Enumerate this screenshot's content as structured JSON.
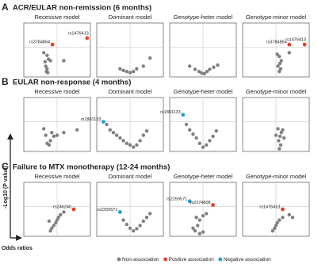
{
  "sections": [
    {
      "letter": "A",
      "title": "ACR/EULAR non-remission (6 months)"
    },
    {
      "letter": "B",
      "title": "EULAR non-response (4 months)"
    },
    {
      "letter": "C",
      "title": "Failure to MTX monotherapy (12-24 months)"
    }
  ],
  "axes": {
    "y_label": "-Log10 (P value)",
    "x_label": "Odds ratios"
  },
  "legend": [
    {
      "name": "Non-association",
      "color": "#808080"
    },
    {
      "name": "Positive association",
      "color": "#e8402a"
    },
    {
      "name": "Negative association",
      "color": "#1ea0dc"
    }
  ],
  "chart_data": [
    {
      "type": "scatter",
      "title": "Recessive model",
      "xlim": [
        0,
        1
      ],
      "ylim": [
        0,
        1
      ],
      "color": "#808080",
      "x": [
        0.33,
        0.35,
        0.34,
        0.36,
        0.32,
        0.37,
        0.35,
        0.3,
        0.4,
        0.6
      ],
      "y": [
        0.2,
        0.15,
        0.1,
        0.08,
        0.28,
        0.33,
        0.4,
        0.45,
        0.3,
        0.3
      ],
      "highlights": [
        {
          "label": "rs3784864",
          "x": 0.43,
          "y": 0.6,
          "color": "#e8402a"
        },
        {
          "label": "rs1476413",
          "x": 0.95,
          "y": 0.72,
          "color": "#e8402a"
        }
      ]
    },
    {
      "type": "scatter",
      "title": "Dominant model",
      "xlim": [
        0,
        1
      ],
      "ylim": [
        0,
        1
      ],
      "color": "#808080",
      "x": [
        0.35,
        0.4,
        0.45,
        0.5,
        0.55,
        0.6,
        0.7,
        0.8
      ],
      "y": [
        0.15,
        0.12,
        0.1,
        0.08,
        0.1,
        0.15,
        0.2,
        0.35
      ],
      "highlights": []
    },
    {
      "type": "scatter",
      "title": "Genotype-heter model",
      "xlim": [
        0,
        1
      ],
      "ylim": [
        0,
        1
      ],
      "color": "#808080",
      "x": [
        0.3,
        0.38,
        0.44,
        0.48,
        0.52,
        0.56,
        0.6,
        0.66,
        0.72
      ],
      "y": [
        0.2,
        0.14,
        0.1,
        0.07,
        0.06,
        0.1,
        0.14,
        0.18,
        0.22
      ],
      "highlights": []
    },
    {
      "type": "scatter",
      "title": "Genotype-minor model",
      "xlim": [
        0,
        1
      ],
      "ylim": [
        0,
        1
      ],
      "color": "#808080",
      "x": [
        0.55,
        0.57,
        0.53,
        0.56,
        0.58,
        0.55,
        0.52,
        0.7
      ],
      "y": [
        0.1,
        0.15,
        0.2,
        0.25,
        0.3,
        0.38,
        0.42,
        0.45
      ],
      "highlights": [
        {
          "label": "rs3784864",
          "x": 0.7,
          "y": 0.6,
          "color": "#e8402a"
        },
        {
          "label": "rs1476413",
          "x": 0.93,
          "y": 0.6,
          "color": "#e8402a"
        }
      ]
    },
    {
      "type": "scatter",
      "title": "Recessive model",
      "xlim": [
        0,
        1
      ],
      "ylim": [
        0,
        1
      ],
      "color": "#808080",
      "x": [
        0.35,
        0.38,
        0.4,
        0.33,
        0.42,
        0.45,
        0.5,
        0.6,
        0.8,
        0.3
      ],
      "y": [
        0.15,
        0.12,
        0.2,
        0.3,
        0.35,
        0.28,
        0.3,
        0.35,
        0.4,
        0.42
      ],
      "highlights": []
    },
    {
      "type": "scatter",
      "title": "Dominant model",
      "xlim": [
        0,
        1
      ],
      "ylim": [
        0,
        1
      ],
      "color": "#808080",
      "x": [
        0.15,
        0.2,
        0.25,
        0.3,
        0.35,
        0.4,
        0.45,
        0.5,
        0.55,
        0.6,
        0.65,
        0.7,
        0.75
      ],
      "y": [
        0.5,
        0.4,
        0.35,
        0.3,
        0.25,
        0.2,
        0.15,
        0.12,
        0.08,
        0.12,
        0.2,
        0.3,
        0.38
      ],
      "highlights": [
        {
          "label": "rs1801133",
          "x": 0.1,
          "y": 0.55,
          "color": "#1ea0dc"
        }
      ]
    },
    {
      "type": "scatter",
      "title": "Genotype-heter model",
      "xlim": [
        0,
        1
      ],
      "ylim": [
        0,
        1
      ],
      "color": "#808080",
      "x": [
        0.25,
        0.3,
        0.35,
        0.4,
        0.45,
        0.5,
        0.55,
        0.6,
        0.65,
        0.7
      ],
      "y": [
        0.5,
        0.4,
        0.32,
        0.25,
        0.15,
        0.08,
        0.12,
        0.2,
        0.28,
        0.38
      ],
      "highlights": [
        {
          "label": "rs1801133",
          "x": 0.2,
          "y": 0.68,
          "color": "#1ea0dc"
        }
      ]
    },
    {
      "type": "scatter",
      "title": "Genotype-minor model",
      "xlim": [
        0,
        1
      ],
      "ylim": [
        0,
        1
      ],
      "color": "#808080",
      "x": [
        0.55,
        0.57,
        0.54,
        0.56,
        0.58,
        0.6,
        0.53,
        0.5,
        0.62
      ],
      "y": [
        0.05,
        0.12,
        0.2,
        0.28,
        0.35,
        0.4,
        0.42,
        0.3,
        0.25
      ],
      "highlights": []
    },
    {
      "type": "scatter",
      "title": "Recessive model",
      "xlim": [
        0,
        1
      ],
      "ylim": [
        0,
        1
      ],
      "color": "#808080",
      "x": [
        0.4,
        0.42,
        0.45,
        0.48,
        0.5,
        0.52,
        0.55,
        0.6,
        0.38
      ],
      "y": [
        0.1,
        0.15,
        0.2,
        0.25,
        0.3,
        0.35,
        0.4,
        0.45,
        0.28
      ],
      "highlights": [
        {
          "label": "rs246240",
          "x": 0.75,
          "y": 0.5,
          "color": "#e8402a"
        }
      ]
    },
    {
      "type": "scatter",
      "title": "Dominant model",
      "xlim": [
        0,
        1
      ],
      "ylim": [
        0,
        1
      ],
      "color": "#808080",
      "x": [
        0.4,
        0.45,
        0.5,
        0.55,
        0.6,
        0.65,
        0.7,
        0.75,
        0.8
      ],
      "y": [
        0.3,
        0.22,
        0.15,
        0.1,
        0.14,
        0.2,
        0.28,
        0.35,
        0.42
      ],
      "highlights": [
        {
          "label": "rs2259571",
          "x": 0.35,
          "y": 0.45,
          "color": "#1ea0dc"
        }
      ]
    },
    {
      "type": "scatter",
      "title": "Genotype-heter model",
      "xlim": [
        0,
        1
      ],
      "ylim": [
        0,
        1
      ],
      "color": "#808080",
      "x": [
        0.35,
        0.38,
        0.42,
        0.45,
        0.4,
        0.5,
        0.55,
        0.45,
        0.5
      ],
      "y": [
        0.15,
        0.1,
        0.2,
        0.3,
        0.35,
        0.38,
        0.42,
        0.05,
        0.08
      ],
      "highlights": [
        {
          "label": "rs2259571",
          "x": 0.3,
          "y": 0.65,
          "color": "#1ea0dc"
        },
        {
          "label": "rs2274808",
          "x": 0.65,
          "y": 0.58,
          "color": "#e8402a"
        }
      ]
    },
    {
      "type": "scatter",
      "title": "Genotype-minor model",
      "xlim": [
        0,
        1
      ],
      "ylim": [
        0,
        1
      ],
      "color": "#808080",
      "x": [
        0.45,
        0.5,
        0.52,
        0.55,
        0.6,
        0.7,
        0.75,
        0.48
      ],
      "y": [
        0.1,
        0.2,
        0.25,
        0.3,
        0.35,
        0.4,
        0.35,
        0.15
      ],
      "highlights": [
        {
          "label": "rs1476413",
          "x": 0.6,
          "y": 0.5,
          "color": "#e8402a"
        }
      ]
    }
  ]
}
